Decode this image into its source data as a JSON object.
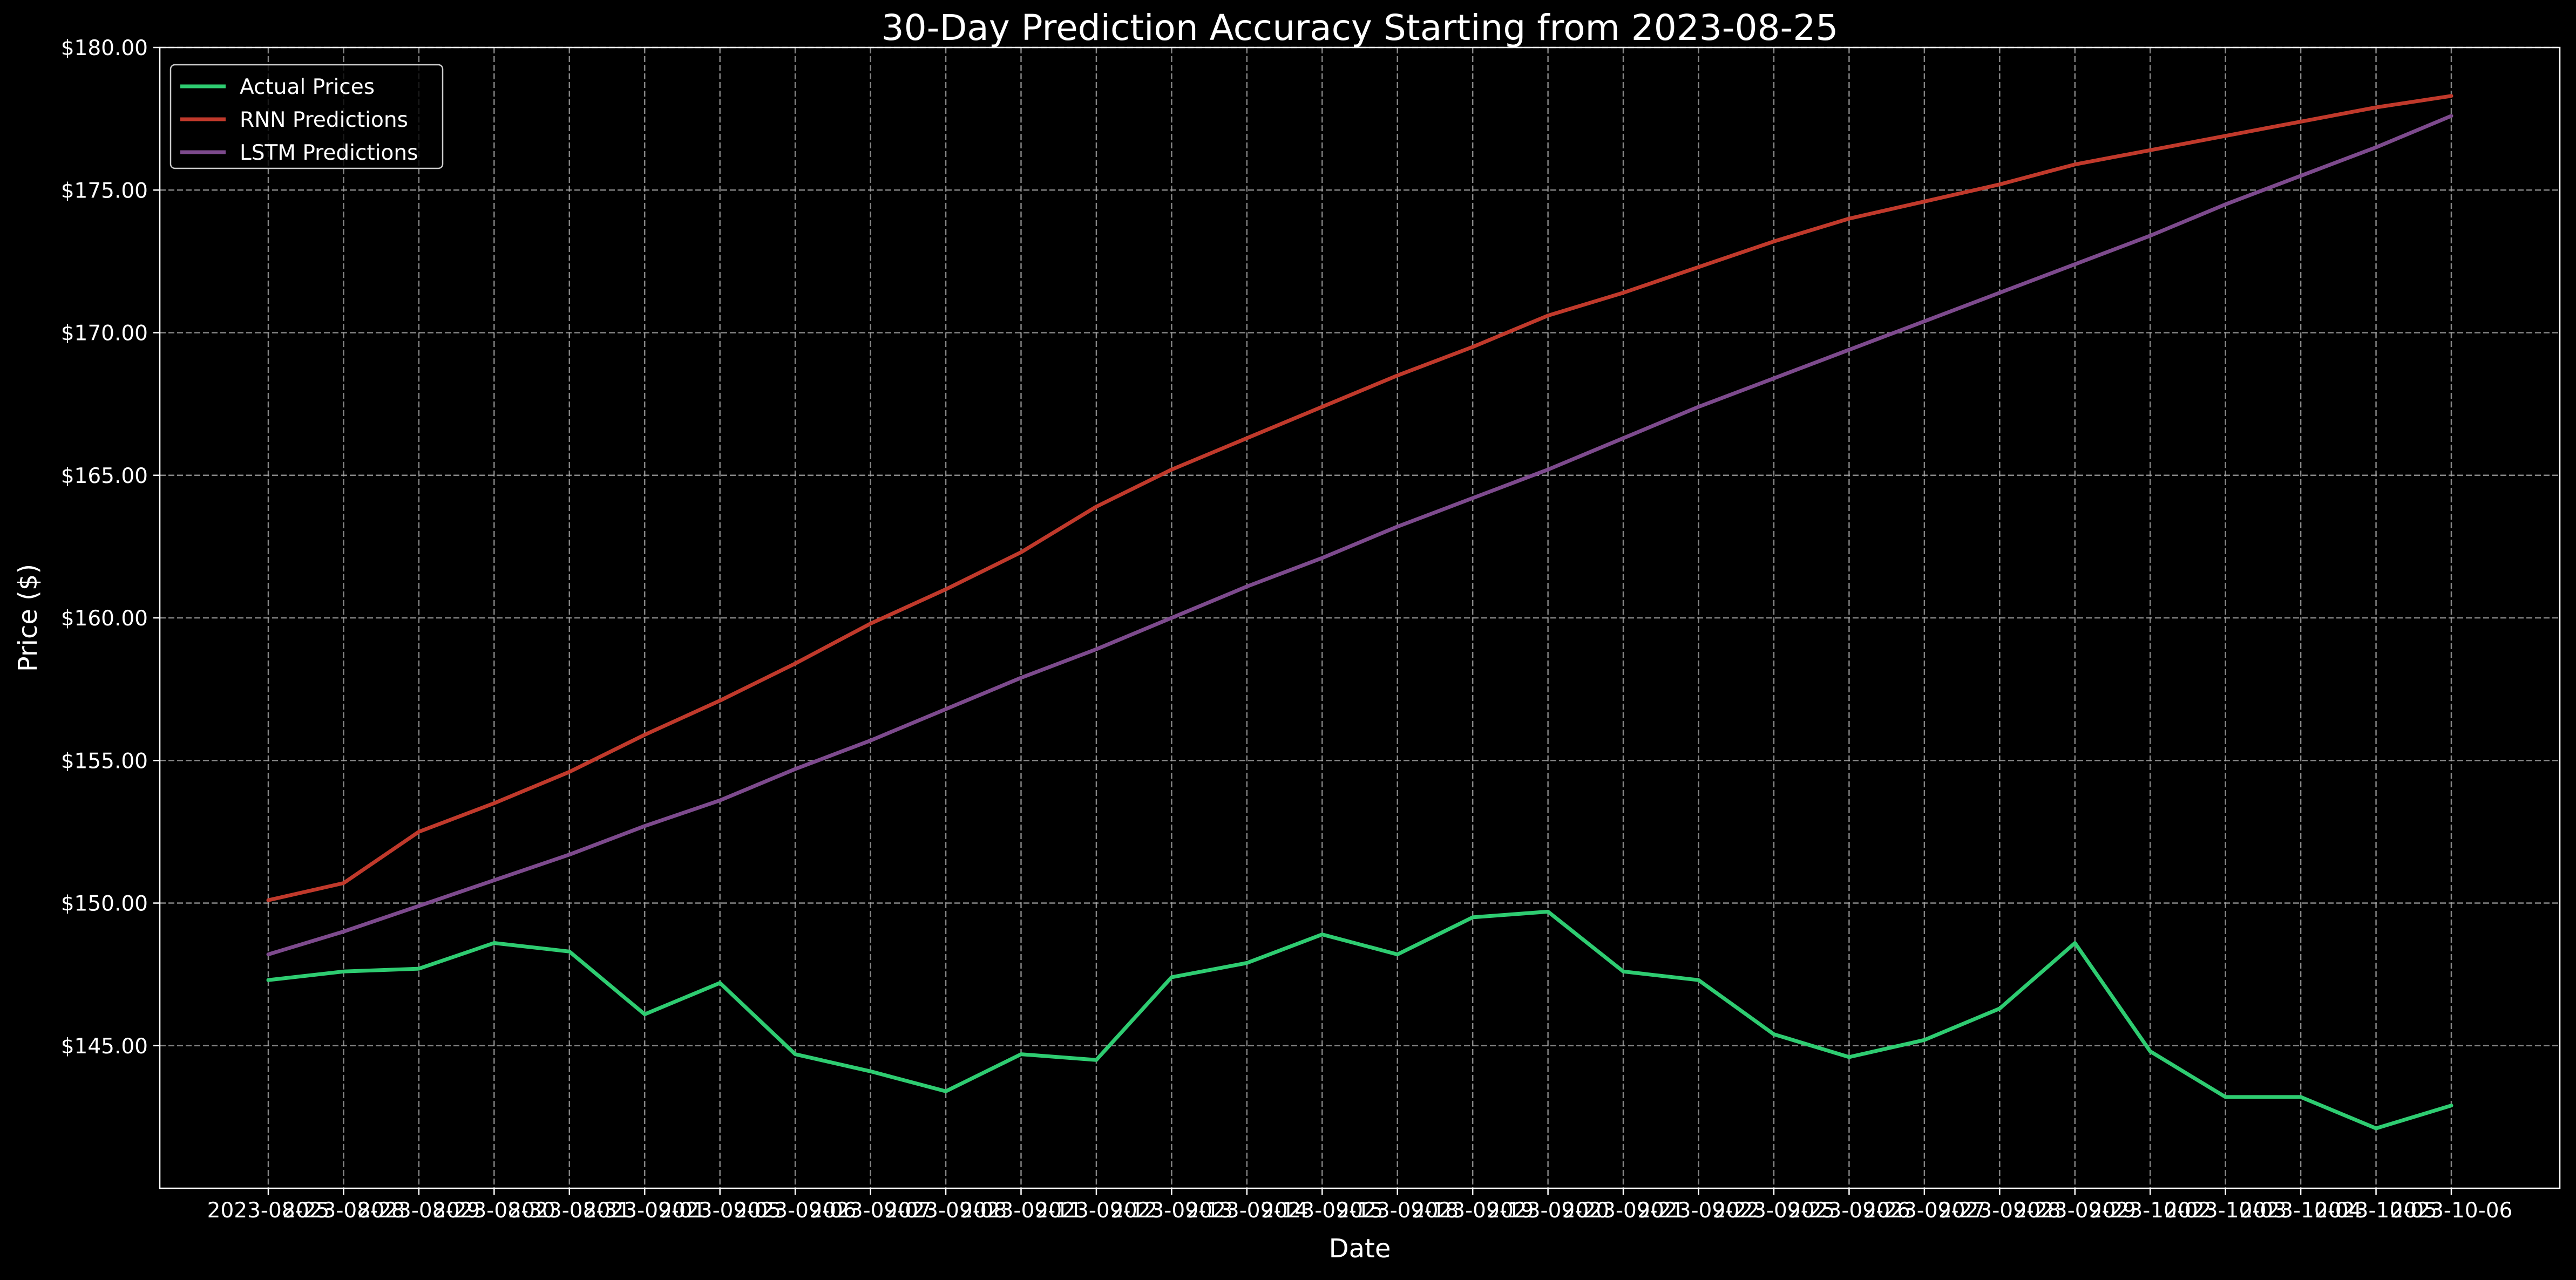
{
  "chart_data": {
    "type": "line",
    "title": "30-Day Prediction Accuracy Starting from 2023-08-25",
    "xlabel": "Date",
    "ylabel": "Price ($)",
    "x": [
      "2023-08-25",
      "2023-08-28",
      "2023-08-29",
      "2023-08-30",
      "2023-08-31",
      "2023-09-01",
      "2023-09-05",
      "2023-09-06",
      "2023-09-07",
      "2023-09-08",
      "2023-09-11",
      "2023-09-12",
      "2023-09-13",
      "2023-09-14",
      "2023-09-15",
      "2023-09-18",
      "2023-09-19",
      "2023-09-20",
      "2023-09-21",
      "2023-09-22",
      "2023-09-25",
      "2023-09-26",
      "2023-09-27",
      "2023-09-28",
      "2023-09-29",
      "2023-10-02",
      "2023-10-03",
      "2023-10-04",
      "2023-10-05",
      "2023-10-06"
    ],
    "ylim": [
      140.0,
      180.0
    ],
    "yticks": [
      145,
      150,
      155,
      160,
      165,
      170,
      175,
      180
    ],
    "ytick_labels": [
      "$145.00",
      "$150.00",
      "$155.00",
      "$160.00",
      "$165.00",
      "$170.00",
      "$175.00",
      "$180.00"
    ],
    "grid": true,
    "legend_position": "top-left",
    "series": [
      {
        "name": "Actual Prices",
        "color": "#2ecc71",
        "values": [
          147.3,
          147.6,
          147.7,
          148.6,
          148.3,
          146.1,
          147.2,
          144.7,
          144.1,
          143.4,
          144.7,
          144.5,
          147.4,
          147.9,
          148.9,
          148.2,
          149.5,
          149.7,
          147.6,
          147.3,
          145.4,
          144.6,
          145.2,
          146.3,
          148.6,
          144.8,
          143.2,
          143.2,
          142.1,
          142.9
        ]
      },
      {
        "name": "RNN Predictions",
        "color": "#c0392b",
        "values": [
          150.1,
          150.7,
          152.5,
          153.5,
          154.6,
          155.9,
          157.1,
          158.4,
          159.8,
          161.0,
          162.3,
          163.9,
          165.2,
          166.3,
          167.4,
          168.5,
          169.5,
          170.6,
          171.4,
          172.3,
          173.2,
          174.0,
          174.6,
          175.2,
          175.9,
          176.4,
          176.9,
          177.4,
          177.9,
          178.3
        ]
      },
      {
        "name": "LSTM Predictions",
        "color": "#7d4a8d",
        "values": [
          148.2,
          149.0,
          149.9,
          150.8,
          151.7,
          152.7,
          153.6,
          154.7,
          155.7,
          156.8,
          157.9,
          158.9,
          160.0,
          161.1,
          162.1,
          163.2,
          164.2,
          165.2,
          166.3,
          167.4,
          168.4,
          169.4,
          170.4,
          171.4,
          172.4,
          173.4,
          174.5,
          175.5,
          176.5,
          177.6
        ]
      }
    ]
  }
}
